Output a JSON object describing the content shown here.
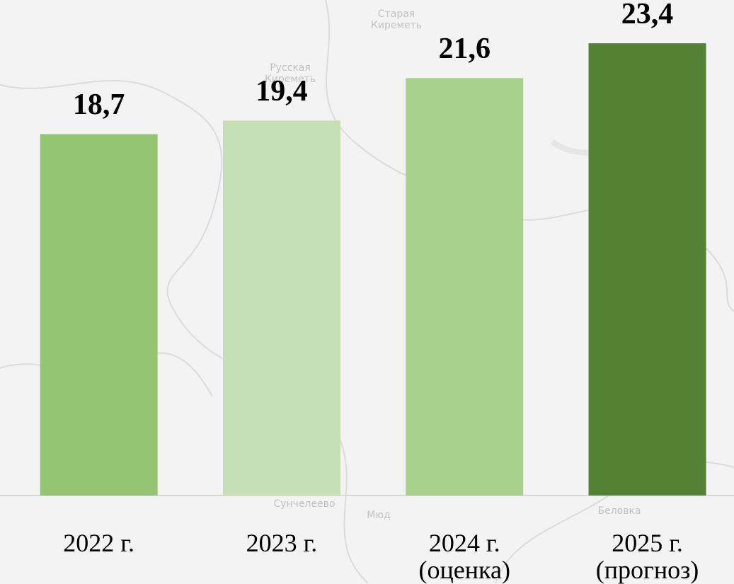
{
  "chart_data": {
    "type": "bar",
    "categories": [
      "2022 г.",
      "2023 г.",
      "2024 г.\n(оценка)",
      "2025 г.\n(прогноз)"
    ],
    "values": [
      18.7,
      19.4,
      21.6,
      23.4
    ],
    "value_labels": [
      "18,7",
      "19,4",
      "21,6",
      "23,4"
    ],
    "colors": [
      "#93c572",
      "#c5e0b4",
      "#a9d18e",
      "#548235"
    ],
    "ylim": [
      0,
      25
    ]
  },
  "map_labels": [
    "Старая Киреметь",
    "Русская Киреметь",
    "Сунчелеево",
    "Мюд",
    "Беловка"
  ]
}
